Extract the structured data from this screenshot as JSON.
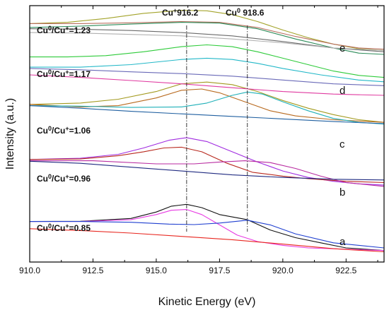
{
  "chart_data": {
    "type": "line",
    "xlabel": "Kinetic Energy (eV)",
    "ylabel": "Intensity (a.u.)",
    "xlim": [
      910.0,
      924.0
    ],
    "ylim": [
      0,
      100
    ],
    "x_ticks": [
      910.0,
      912.5,
      915.0,
      917.5,
      920.0,
      922.5
    ],
    "x_tick_labels": [
      "910.0",
      "912.5",
      "915.0",
      "917.5",
      "920.0",
      "922.5"
    ],
    "y_ticks_labeled": false,
    "grid": false,
    "legend": "none",
    "reference_lines": [
      {
        "x": 916.2,
        "label_parts": [
          "Cu",
          "+",
          "916.2"
        ],
        "style": "dash-dot"
      },
      {
        "x": 918.6,
        "label_parts": [
          "Cu",
          "0",
          " 918.6"
        ],
        "style": "dash-dot"
      }
    ],
    "samples": [
      {
        "label": "a",
        "ratio_parts": [
          "Cu",
          "0",
          "/Cu",
          "+",
          "=0.85"
        ],
        "series": [
          {
            "color": "#111111",
            "x": [
              910.0,
              912.0,
              914.0,
              915.0,
              915.6,
              916.2,
              916.8,
              917.5,
              918.6,
              919.5,
              920.5,
              921.5,
              922.5,
              924.0
            ],
            "y": [
              15.8,
              15.9,
              17.0,
              19.5,
              21.8,
              22.5,
              21.2,
              18.5,
              16.5,
              12.5,
              9.5,
              7.5,
              5.5,
              4.5
            ]
          },
          {
            "color": "#e83be3",
            "x": [
              910.0,
              912.0,
              914.0,
              915.0,
              915.6,
              916.2,
              916.8,
              917.5,
              918.2,
              919.0,
              920.0,
              921.0,
              924.0
            ],
            "y": [
              15.8,
              15.8,
              16.5,
              18.5,
              20.2,
              20.5,
              18.5,
              14.5,
              10.5,
              8.0,
              6.5,
              5.5,
              4.5
            ]
          },
          {
            "color": "#1f3fd0",
            "x": [
              910.0,
              912.0,
              914.0,
              915.5,
              916.5,
              917.5,
              918.6,
              919.5,
              920.5,
              922.0,
              924.0
            ],
            "y": [
              15.8,
              15.8,
              15.5,
              14.8,
              14.6,
              15.2,
              16.3,
              14.5,
              11.0,
              7.5,
              5.5
            ]
          },
          {
            "color": "#e8261f",
            "x": [
              910.0,
              912.0,
              914.0,
              916.0,
              918.0,
              920.0,
              922.0,
              924.0
            ],
            "y": [
              13.0,
              12.3,
              11.3,
              10.0,
              8.7,
              7.0,
              5.2,
              4.0
            ]
          }
        ]
      },
      {
        "label": "b",
        "ratio_parts": [
          "Cu",
          "0",
          "/Cu",
          "+",
          "=0.96"
        ],
        "series": [
          {
            "color": "#a02be0",
            "x": [
              910.0,
              912.0,
              913.5,
              914.5,
              915.5,
              916.2,
              917.0,
              918.0,
              919.0,
              920.0,
              921.0,
              922.0,
              923.0,
              924.0
            ],
            "y": [
              40.0,
              40.5,
              42.0,
              44.5,
              47.5,
              48.5,
              47.0,
              43.0,
              39.0,
              35.5,
              33.0,
              31.5,
              30.5,
              30.0
            ]
          },
          {
            "color": "#b8281d",
            "x": [
              910.0,
              912.0,
              913.5,
              914.5,
              915.3,
              916.0,
              916.8,
              917.8,
              918.8,
              920.0,
              921.0,
              922.5,
              924.0
            ],
            "y": [
              40.0,
              40.2,
              41.5,
              43.0,
              44.5,
              44.8,
              43.0,
              38.5,
              35.0,
              33.5,
              32.5,
              31.5,
              31.0
            ]
          },
          {
            "color": "#b82aa0",
            "x": [
              910.0,
              912.5,
              915.0,
              916.5,
              917.5,
              918.5,
              919.5,
              920.5,
              921.5,
              922.5,
              924.0
            ],
            "y": [
              39.5,
              39.5,
              38.3,
              38.3,
              39.0,
              39.5,
              38.8,
              36.5,
              33.5,
              31.0,
              29.5
            ]
          },
          {
            "color": "#1f2a80",
            "x": [
              910.0,
              912.0,
              914.0,
              916.0,
              918.0,
              920.0,
              922.0,
              924.0
            ],
            "y": [
              39.3,
              38.5,
              37.0,
              35.5,
              34.0,
              33.0,
              32.3,
              32.0
            ]
          }
        ]
      },
      {
        "label": "c",
        "ratio_parts": [
          "Cu",
          "0",
          "/Cu",
          "+",
          "=1.06"
        ],
        "series": [
          {
            "color": "#a39a1f",
            "x": [
              910.0,
              912.0,
              913.5,
              915.0,
              916.0,
              917.0,
              918.0,
              919.0,
              920.0,
              921.0,
              922.0,
              923.0,
              924.0
            ],
            "y": [
              61.5,
              62.0,
              63.5,
              66.5,
              69.5,
              70.2,
              69.2,
              66.5,
              63.0,
              60.0,
              57.5,
              55.5,
              54.5
            ]
          },
          {
            "color": "#b86a1f",
            "x": [
              910.0,
              911.0,
              912.0,
              913.5,
              915.0,
              916.0,
              916.8,
              917.5,
              918.5,
              919.5,
              920.5,
              922.0,
              924.0
            ],
            "y": [
              61.5,
              61.0,
              60.5,
              61.0,
              64.0,
              67.0,
              67.5,
              66.0,
              62.5,
              59.0,
              57.0,
              55.5,
              54.5
            ]
          },
          {
            "color": "#1fb0b8",
            "x": [
              910.0,
              912.0,
              914.0,
              916.0,
              917.0,
              918.0,
              918.6,
              919.2,
              920.0,
              921.0,
              922.0,
              923.0,
              924.0
            ],
            "y": [
              61.0,
              60.8,
              60.3,
              60.5,
              62.0,
              65.0,
              66.3,
              65.5,
              62.5,
              59.0,
              56.0,
              54.5,
              53.8
            ]
          },
          {
            "color": "#1f5fa0",
            "x": [
              910.0,
              912.0,
              914.0,
              916.0,
              918.0,
              920.0,
              922.0,
              924.0
            ],
            "y": [
              61.0,
              60.0,
              58.8,
              57.8,
              56.8,
              55.8,
              54.8,
              54.0
            ]
          }
        ]
      },
      {
        "label": "d",
        "ratio_parts": [
          "Cu",
          "0",
          "/Cu",
          "+",
          "=1.17"
        ],
        "series": [
          {
            "color": "#2ecb3a",
            "x": [
              910.0,
              911.5,
              913.0,
              914.5,
              916.0,
              917.0,
              918.0,
              919.0,
              920.0,
              921.0,
              922.0,
              923.0,
              924.0
            ],
            "y": [
              80.0,
              80.0,
              80.5,
              82.0,
              84.0,
              84.7,
              84.0,
              82.0,
              79.5,
              77.0,
              74.5,
              72.8,
              72.0
            ]
          },
          {
            "color": "#23b8c8",
            "x": [
              910.0,
              912.0,
              914.0,
              916.0,
              917.0,
              918.0,
              919.0,
              920.0,
              921.5,
              923.0,
              924.0
            ],
            "y": [
              76.0,
              76.0,
              77.0,
              79.0,
              79.5,
              79.0,
              77.5,
              75.5,
              73.0,
              71.0,
              70.3
            ]
          },
          {
            "color": "#6a6ab8",
            "x": [
              910.0,
              912.0,
              914.0,
              916.0,
              918.0,
              920.0,
              922.0,
              924.0
            ],
            "y": [
              75.5,
              75.0,
              74.2,
              73.5,
              72.5,
              71.0,
              69.5,
              68.8
            ]
          },
          {
            "color": "#e03aa0",
            "x": [
              910.0,
              912.0,
              914.0,
              916.0,
              918.0,
              920.0,
              922.0,
              924.0
            ],
            "y": [
              73.0,
              72.0,
              70.8,
              69.5,
              68.0,
              66.5,
              65.5,
              65.0
            ]
          }
        ]
      },
      {
        "label": "e",
        "ratio_parts": [
          "Cu",
          "0",
          "/Cu",
          "+",
          "=1.23"
        ],
        "series": [
          {
            "color": "#a3a32a",
            "x": [
              910.0,
              911.5,
              913.0,
              914.5,
              916.0,
              917.0,
              918.0,
              919.0,
              920.0,
              921.0,
              922.0,
              923.0,
              924.0
            ],
            "y": [
              93.0,
              93.5,
              95.0,
              97.0,
              98.2,
              98.0,
              96.5,
              93.8,
              90.5,
              87.5,
              85.0,
              83.2,
              82.5
            ]
          },
          {
            "color": "#b8705f",
            "x": [
              910.0,
              912.0,
              914.0,
              916.0,
              917.5,
              919.0,
              920.5,
              922.0,
              923.0,
              924.0
            ],
            "y": [
              93.0,
              93.0,
              93.3,
              93.8,
              93.5,
              91.5,
              88.0,
              85.0,
              83.5,
              83.0
            ]
          },
          {
            "color": "#2b8b58",
            "x": [
              910.0,
              912.0,
              914.0,
              916.0,
              917.5,
              919.0,
              920.5,
              922.0,
              923.0,
              924.0
            ],
            "y": [
              91.5,
              92.0,
              92.8,
              93.5,
              93.2,
              91.0,
              87.0,
              83.5,
              81.5,
              81.0
            ]
          },
          {
            "color": "#6a6a6a",
            "x": [
              910.0,
              912.0,
              914.0,
              916.0,
              918.0,
              920.0,
              922.0,
              924.0
            ],
            "y": [
              91.0,
              90.8,
              90.3,
              89.5,
              88.2,
              86.0,
              83.5,
              82.0
            ]
          },
          {
            "color": "#b0b0b0",
            "x": [
              910.0,
              912.0,
              914.0,
              916.0,
              918.0,
              920.0,
              922.0,
              924.0
            ],
            "y": [
              89.5,
              89.3,
              88.8,
              88.2,
              87.0,
              85.5,
              83.5,
              82.5
            ]
          }
        ]
      }
    ]
  }
}
